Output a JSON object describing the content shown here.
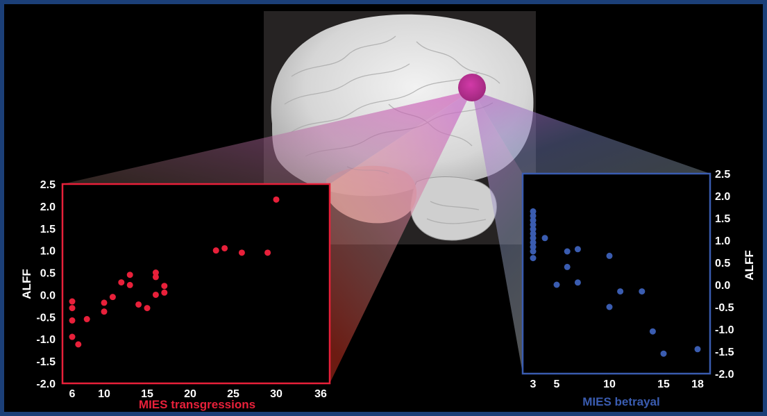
{
  "colors": {
    "background": "#000000",
    "border": "#1b3f78",
    "left_series": "#e8203a",
    "right_series": "#3a5cb0",
    "roi": "#c0309a"
  },
  "chart_data": [
    {
      "type": "scatter",
      "xlabel": "MIES transgressions",
      "ylabel": "ALFF",
      "x_ticks": [
        "6",
        "10",
        "15",
        "20",
        "25",
        "30",
        "36"
      ],
      "y_ticks": [
        "2.5",
        "2.0",
        "1.5",
        "1.0",
        "0.5",
        "0.0",
        "-0.5",
        "-1.0",
        "-1.5",
        "-2.0"
      ],
      "xlim": [
        5,
        36
      ],
      "ylim": [
        -2.0,
        2.5
      ],
      "points": [
        {
          "x": 6,
          "y": -0.15
        },
        {
          "x": 6,
          "y": -0.3
        },
        {
          "x": 6,
          "y": -0.58
        },
        {
          "x": 6,
          "y": -0.95
        },
        {
          "x": 7,
          "y": -1.12
        },
        {
          "x": 8,
          "y": -0.55
        },
        {
          "x": 10,
          "y": -0.18
        },
        {
          "x": 10,
          "y": -0.38
        },
        {
          "x": 11,
          "y": -0.05
        },
        {
          "x": 12,
          "y": 0.28
        },
        {
          "x": 13,
          "y": 0.45
        },
        {
          "x": 13,
          "y": 0.22
        },
        {
          "x": 14,
          "y": -0.22
        },
        {
          "x": 15,
          "y": -0.3
        },
        {
          "x": 16,
          "y": 0.5
        },
        {
          "x": 16,
          "y": 0.4
        },
        {
          "x": 16,
          "y": 0.0
        },
        {
          "x": 17,
          "y": 0.2
        },
        {
          "x": 17,
          "y": 0.05
        },
        {
          "x": 23,
          "y": 1.0
        },
        {
          "x": 24,
          "y": 1.05
        },
        {
          "x": 26,
          "y": 0.95
        },
        {
          "x": 29,
          "y": 0.95
        },
        {
          "x": 30,
          "y": 2.15
        }
      ]
    },
    {
      "type": "scatter",
      "xlabel": "MIES betrayal",
      "ylabel": "ALFF",
      "x_ticks": [
        "3",
        "5",
        "10",
        "15",
        "18"
      ],
      "y_ticks": [
        "2.5",
        "2.0",
        "1.5",
        "1.0",
        "0.5",
        "0.0",
        "-0.5",
        "-1.0",
        "-1.5",
        "-2.0"
      ],
      "xlim": [
        2.5,
        19
      ],
      "ylim": [
        -2.0,
        2.5
      ],
      "points": [
        {
          "x": 3,
          "y": 1.65
        },
        {
          "x": 3,
          "y": 1.55
        },
        {
          "x": 3,
          "y": 1.45
        },
        {
          "x": 3,
          "y": 1.35
        },
        {
          "x": 3,
          "y": 1.25
        },
        {
          "x": 3,
          "y": 1.15
        },
        {
          "x": 3,
          "y": 1.05
        },
        {
          "x": 3,
          "y": 0.95
        },
        {
          "x": 3,
          "y": 0.85
        },
        {
          "x": 3,
          "y": 0.75
        },
        {
          "x": 3,
          "y": 0.6
        },
        {
          "x": 4,
          "y": 1.05
        },
        {
          "x": 5,
          "y": 0.0
        },
        {
          "x": 6,
          "y": 0.75
        },
        {
          "x": 6,
          "y": 0.4
        },
        {
          "x": 7,
          "y": 0.8
        },
        {
          "x": 7,
          "y": 0.05
        },
        {
          "x": 10,
          "y": 0.65
        },
        {
          "x": 10,
          "y": -0.5
        },
        {
          "x": 11,
          "y": -0.15
        },
        {
          "x": 13,
          "y": -0.15
        },
        {
          "x": 14,
          "y": -1.05
        },
        {
          "x": 15,
          "y": -1.55
        },
        {
          "x": 18,
          "y": -1.45
        }
      ]
    }
  ]
}
